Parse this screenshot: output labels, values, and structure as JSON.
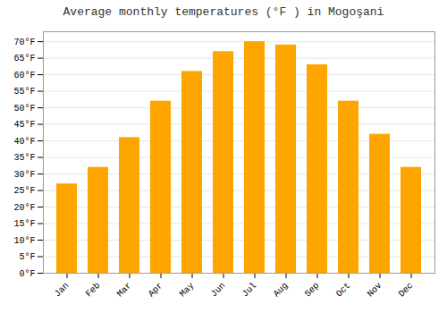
{
  "chart_data": {
    "type": "bar",
    "title": "Average monthly temperatures (°F ) in Mogoşani",
    "categories": [
      "Jan",
      "Feb",
      "Mar",
      "Apr",
      "May",
      "Jun",
      "Jul",
      "Aug",
      "Sep",
      "Oct",
      "Nov",
      "Dec"
    ],
    "values": [
      27,
      32,
      41,
      52,
      61,
      67,
      70,
      69,
      63,
      52,
      42,
      32
    ],
    "color": "#FFA500",
    "ylim": [
      0,
      73
    ],
    "yticks": [
      {
        "value": 0,
        "label": "0°F"
      },
      {
        "value": 5,
        "label": "5°F"
      },
      {
        "value": 10,
        "label": "10°F"
      },
      {
        "value": 15,
        "label": "15°F"
      },
      {
        "value": 20,
        "label": "20°F"
      },
      {
        "value": 25,
        "label": "25°F"
      },
      {
        "value": 30,
        "label": "30°F"
      },
      {
        "value": 35,
        "label": "35°F"
      },
      {
        "value": 40,
        "label": "40°F"
      },
      {
        "value": 45,
        "label": "45°F"
      },
      {
        "value": 50,
        "label": "50°F"
      },
      {
        "value": 55,
        "label": "55°F"
      },
      {
        "value": 60,
        "label": "60°F"
      },
      {
        "value": 65,
        "label": "65°F"
      },
      {
        "value": 70,
        "label": "70°F"
      }
    ],
    "grid": true
  }
}
